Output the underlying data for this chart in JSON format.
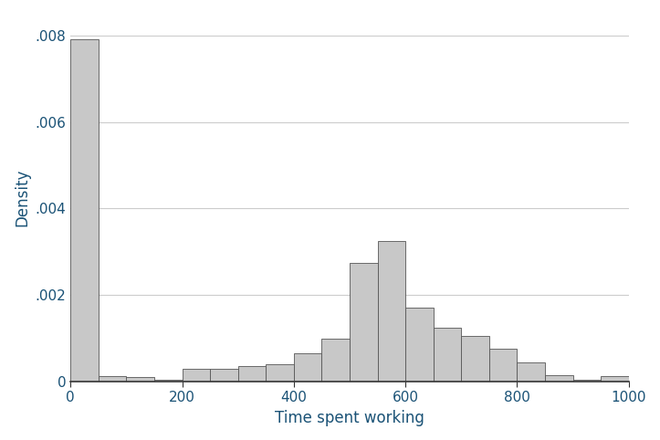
{
  "bin_edges": [
    0,
    50,
    100,
    150,
    200,
    250,
    300,
    350,
    400,
    450,
    500,
    550,
    600,
    650,
    700,
    750,
    800,
    850,
    900,
    950,
    1000
  ],
  "densities": [
    0.0079,
    0.00012,
    0.0001,
    5e-05,
    0.0003,
    0.0003,
    0.00035,
    0.0004,
    0.00065,
    0.001,
    0.00275,
    0.00325,
    0.0017,
    0.00125,
    0.00105,
    0.00075,
    0.00045,
    0.00015,
    5e-05,
    0.00013,
    0.0
  ],
  "bar_color": "#c8c8c8",
  "bar_edgecolor": "#555555",
  "xlabel": "Time spent working",
  "ylabel": "Density",
  "xlim": [
    0,
    1000
  ],
  "ylim": [
    0,
    0.0085
  ],
  "yticks": [
    0,
    0.002,
    0.004,
    0.006,
    0.008
  ],
  "ytick_labels": [
    "0",
    ".002",
    ".004",
    ".006",
    ".008"
  ],
  "xticks": [
    0,
    200,
    400,
    600,
    800,
    1000
  ],
  "grid_color": "#cccccc",
  "background_color": "#ffffff",
  "xlabel_color": "#1a5276",
  "ylabel_color": "#1a5276",
  "tick_color": "#1a5276",
  "xlabel_fontsize": 12,
  "ylabel_fontsize": 12
}
